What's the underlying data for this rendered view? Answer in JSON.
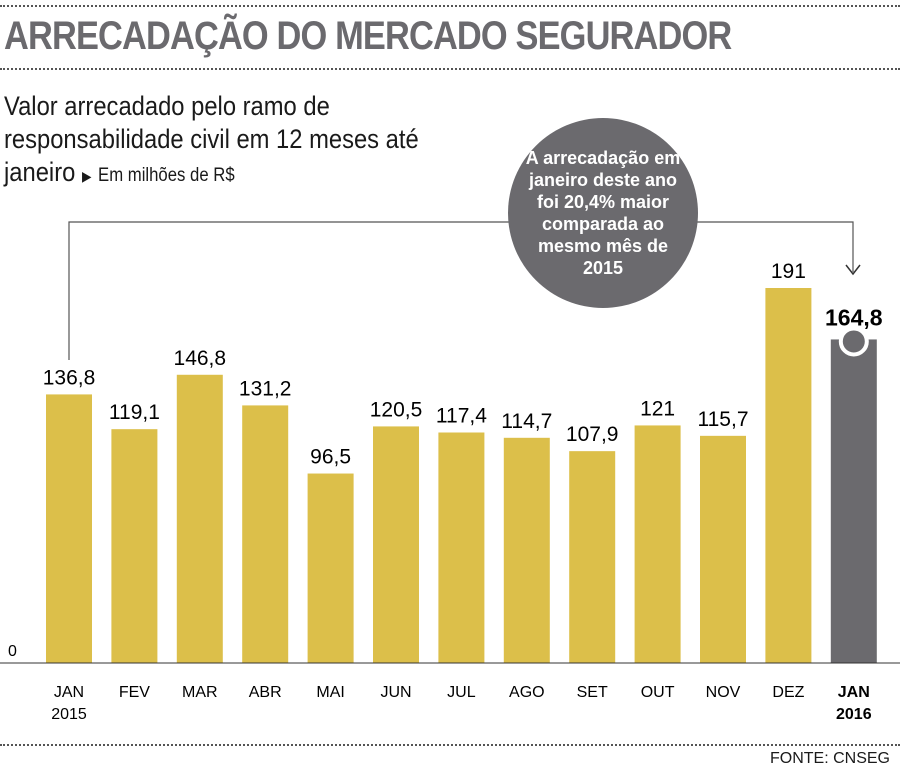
{
  "header": {
    "title": "ARRECADAÇÃO DO MERCADO SEGURADOR"
  },
  "subtitle": {
    "main": "Valor arrecadado pelo ramo de responsabilidade civil em 12 meses até janeiro",
    "unit": "Em milhões de R$"
  },
  "callout": {
    "text": "A arrecadação em janeiro deste ano foi 20,4% maior comparada ao mesmo mês de 2015"
  },
  "source": "FONTE: CNSEG",
  "chart_data": {
    "type": "bar",
    "categories": [
      [
        "JAN",
        "2015"
      ],
      [
        "FEV"
      ],
      [
        "MAR"
      ],
      [
        "ABR"
      ],
      [
        "MAI"
      ],
      [
        "JUN"
      ],
      [
        "JUL"
      ],
      [
        "AGO"
      ],
      [
        "SET"
      ],
      [
        "OUT"
      ],
      [
        "NOV"
      ],
      [
        "DEZ"
      ],
      [
        "JAN",
        "2016"
      ]
    ],
    "values": [
      136.8,
      119.1,
      146.8,
      131.2,
      96.5,
      120.5,
      117.4,
      114.7,
      107.9,
      121,
      115.7,
      191,
      164.8
    ],
    "labels": [
      "136,8",
      "119,1",
      "146,8",
      "131,2",
      "96,5",
      "120,5",
      "117,4",
      "114,7",
      "107,9",
      "121",
      "115,7",
      "191",
      "164,8"
    ],
    "y_tick": "0",
    "ylim": [
      0,
      191
    ],
    "colors": {
      "bar": "#dcbf4a",
      "highlight": "#6b6a6e"
    },
    "highlight_index": 12
  }
}
